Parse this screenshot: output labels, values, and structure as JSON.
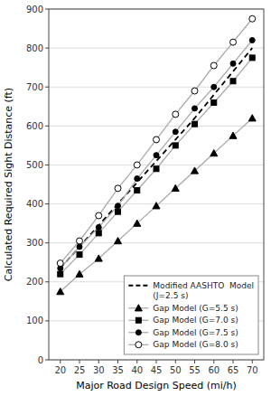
{
  "chart_data": {
    "type": "line",
    "title": "",
    "xlabel": "Major Road Design Speed (mi/h)",
    "ylabel": "Calculated Required Sight Distance (ft)",
    "xlim": [
      17,
      73
    ],
    "ylim": [
      0,
      900
    ],
    "xticks": [
      20,
      25,
      30,
      35,
      40,
      45,
      50,
      55,
      60,
      65,
      70
    ],
    "yticks": [
      0,
      100,
      200,
      300,
      400,
      500,
      600,
      700,
      800,
      900
    ],
    "grid": "y",
    "legend": "lower right",
    "x": [
      20,
      25,
      30,
      35,
      40,
      45,
      50,
      55,
      60,
      65,
      70
    ],
    "series": [
      {
        "name": "Modified AASHTO  Model\n(J=2.5 s)",
        "color": "#000000",
        "line_style": "dashed",
        "marker": "none",
        "values": [
          235,
          290,
          345,
          400,
          455,
          510,
          565,
          620,
          680,
          740,
          800
        ]
      },
      {
        "name": "Gap Model (G=5.5 s)",
        "color": "#aaaaaa",
        "line_style": "solid",
        "marker": "triangle",
        "values": [
          175,
          220,
          260,
          305,
          350,
          395,
          440,
          485,
          530,
          575,
          620
        ]
      },
      {
        "name": "Gap Model (G=7.0 s)",
        "color": "#aaaaaa",
        "line_style": "solid",
        "marker": "square",
        "values": [
          220,
          270,
          325,
          380,
          435,
          490,
          550,
          605,
          660,
          715,
          775
        ]
      },
      {
        "name": "Gap Model (G=7.5 s)",
        "color": "#aaaaaa",
        "line_style": "solid",
        "marker": "circle",
        "values": [
          235,
          290,
          340,
          395,
          465,
          525,
          585,
          645,
          700,
          760,
          820
        ]
      },
      {
        "name": "Gap Model (G=8.0 s)",
        "color": "#aaaaaa",
        "line_style": "solid",
        "marker": "open-circle",
        "values": [
          248,
          305,
          370,
          440,
          500,
          565,
          630,
          690,
          755,
          815,
          875
        ]
      }
    ]
  }
}
